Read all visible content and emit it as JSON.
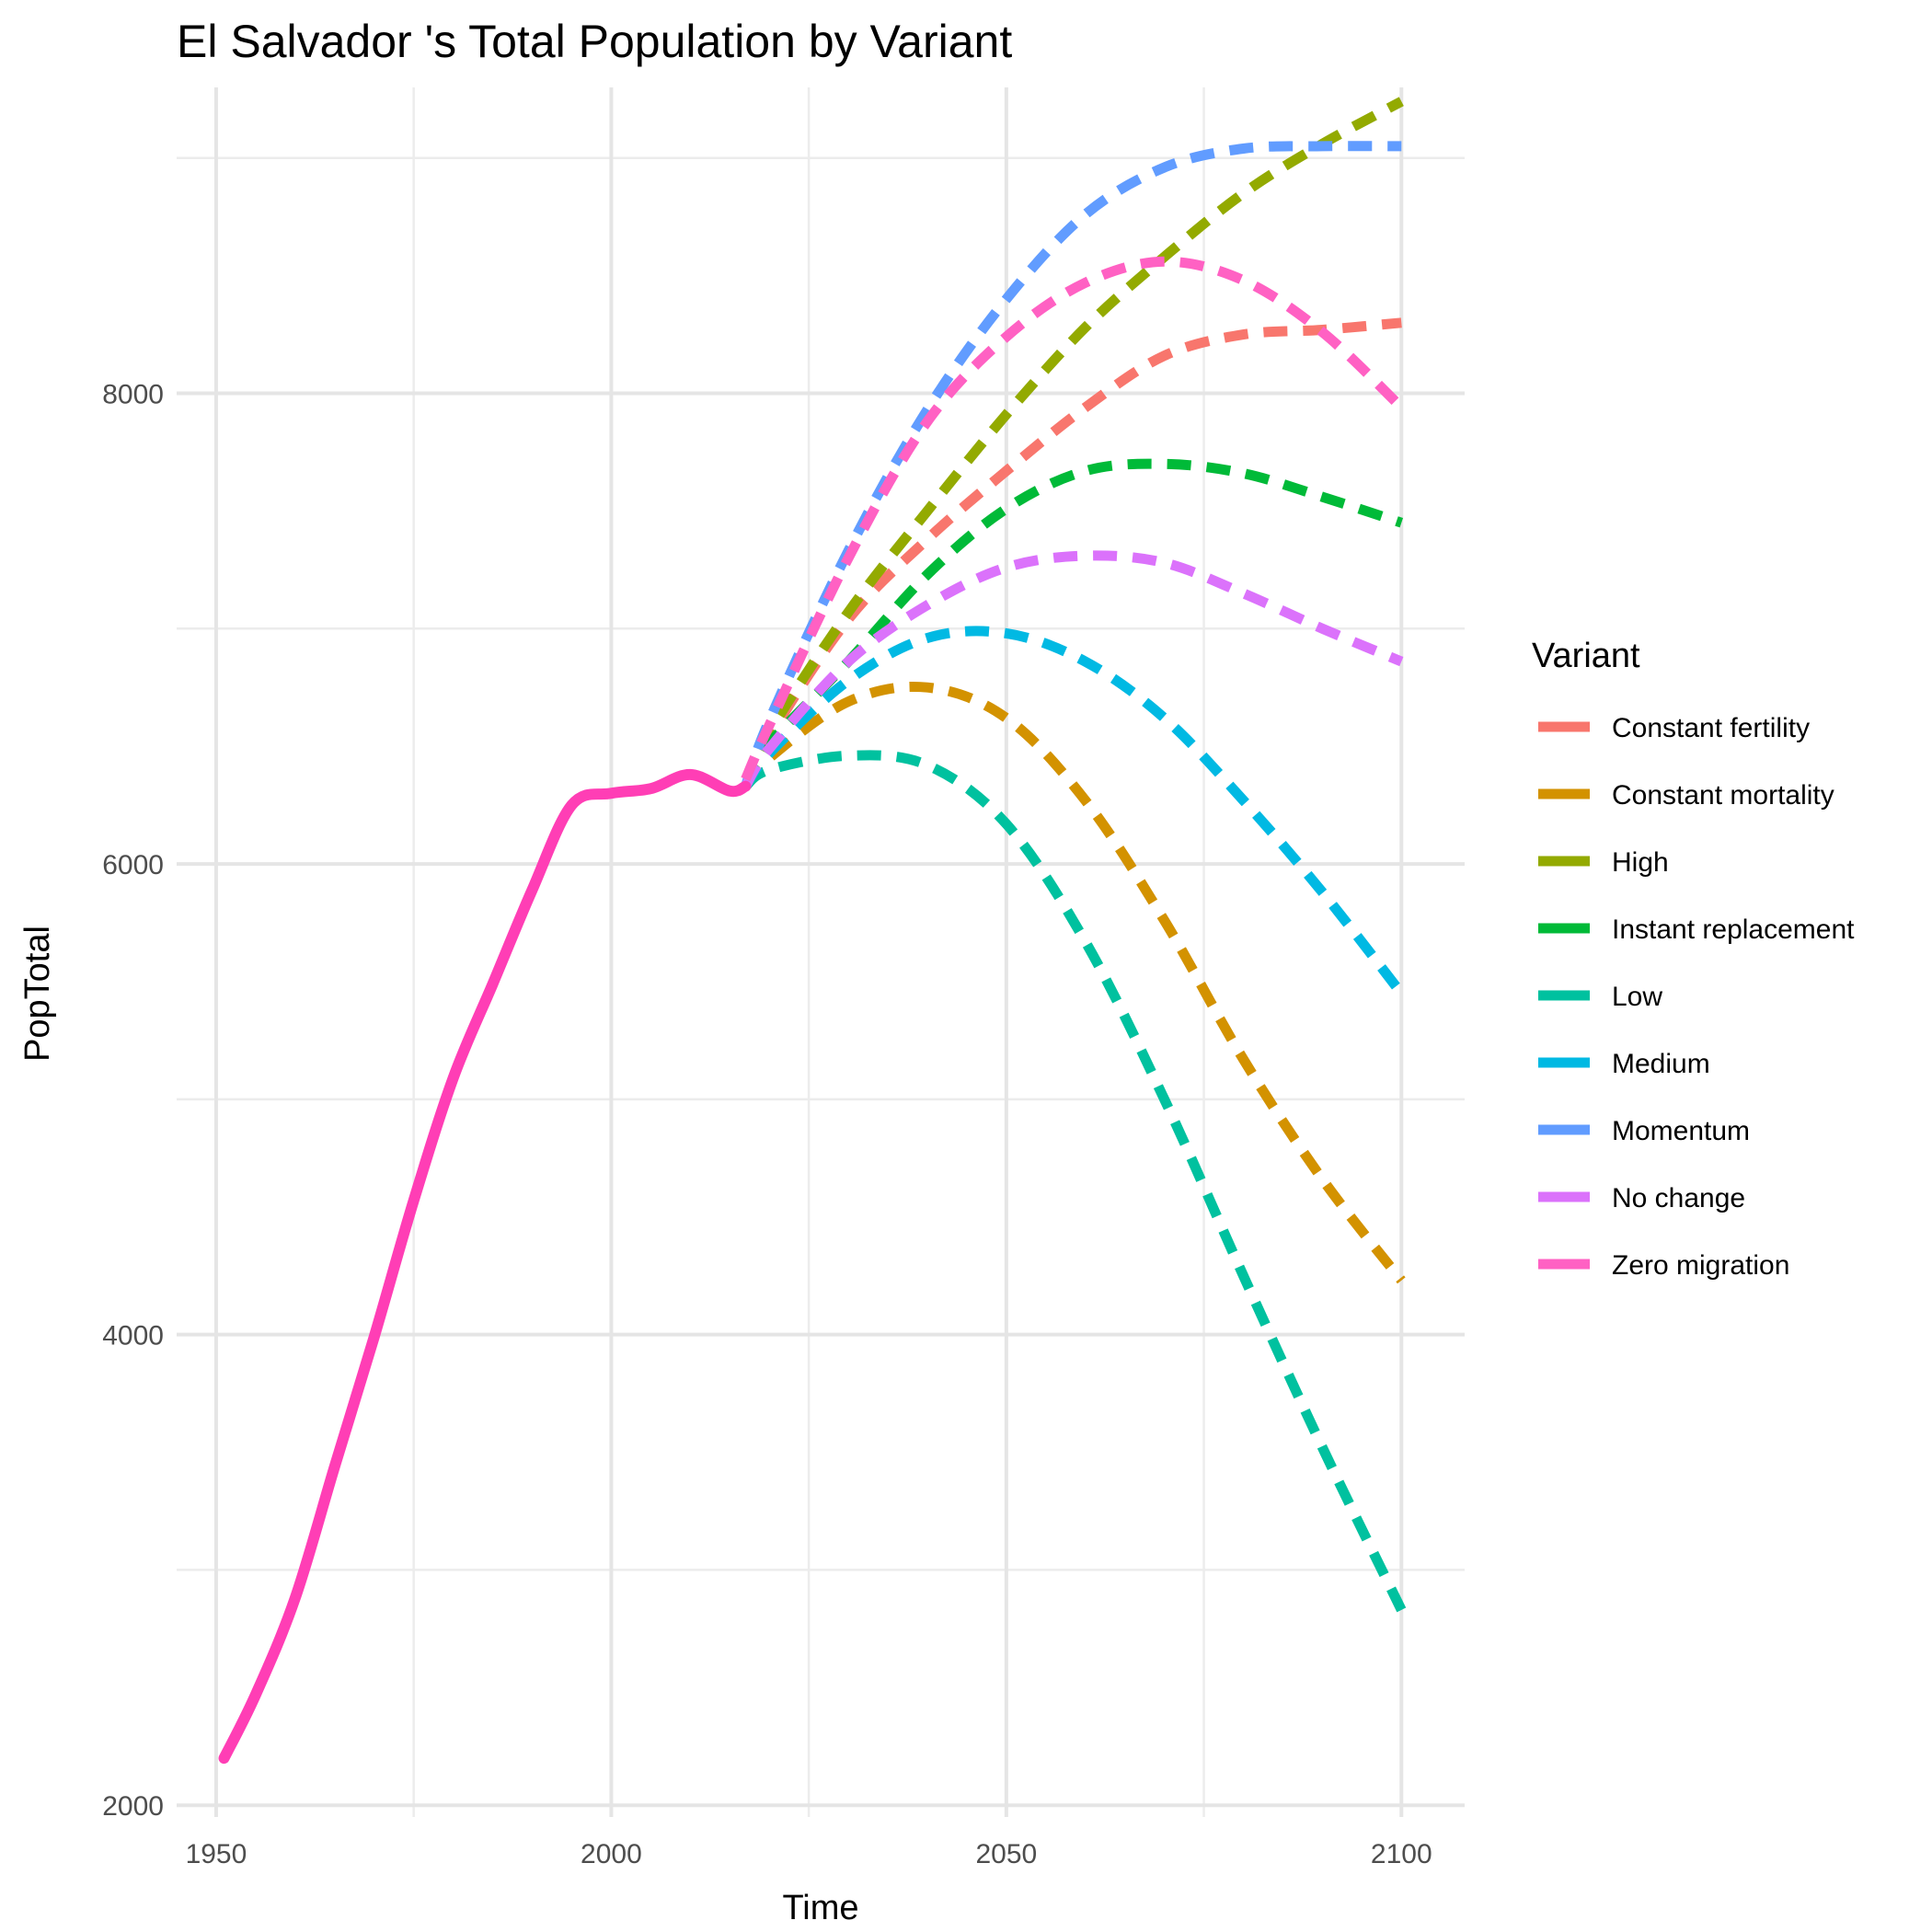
{
  "chart_data": {
    "type": "line",
    "title": "El Salvador 's Total Population by Variant",
    "xlabel": "Time",
    "ylabel": "PopTotal",
    "xlim": [
      1945,
      2108
    ],
    "ylim": [
      1950,
      9300
    ],
    "x_ticks": [
      1950,
      2000,
      2050,
      2100
    ],
    "y_ticks": [
      2000,
      4000,
      6000,
      8000
    ],
    "grid": true,
    "legend": {
      "title": "Variant",
      "position": "right"
    },
    "historical": {
      "name": "Zero migration",
      "color": "#FF3EB5",
      "x": [
        1951,
        1955,
        1960,
        1965,
        1970,
        1975,
        1980,
        1985,
        1990,
        1995,
        2000,
        2005,
        2010,
        2015,
        2017
      ],
      "y": [
        2200,
        2470,
        2880,
        3440,
        3990,
        4570,
        5090,
        5490,
        5890,
        6250,
        6300,
        6320,
        6380,
        6310,
        6330
      ]
    },
    "series": [
      {
        "name": "Constant fertility",
        "color": "#F8766D",
        "x": [
          2017,
          2020,
          2030,
          2040,
          2050,
          2060,
          2070,
          2080,
          2090,
          2100
        ],
        "y": [
          6330,
          6540,
          7040,
          7380,
          7670,
          7940,
          8160,
          8250,
          8270,
          8300
        ]
      },
      {
        "name": "Constant mortality",
        "color": "#D39200",
        "x": [
          2017,
          2020,
          2030,
          2040,
          2050,
          2060,
          2070,
          2080,
          2090,
          2100
        ],
        "y": [
          6330,
          6450,
          6690,
          6750,
          6620,
          6270,
          5760,
          5170,
          4660,
          4230
        ]
      },
      {
        "name": "High",
        "color": "#93AA00",
        "x": [
          2017,
          2020,
          2030,
          2040,
          2050,
          2060,
          2070,
          2080,
          2090,
          2100
        ],
        "y": [
          6330,
          6560,
          7070,
          7500,
          7910,
          8280,
          8580,
          8850,
          9060,
          9240
        ]
      },
      {
        "name": "Instant replacement",
        "color": "#00BA38",
        "x": [
          2017,
          2020,
          2030,
          2040,
          2050,
          2060,
          2070,
          2080,
          2090,
          2100
        ],
        "y": [
          6330,
          6510,
          6860,
          7230,
          7510,
          7670,
          7700,
          7660,
          7560,
          7450
        ]
      },
      {
        "name": "Low",
        "color": "#00C19F",
        "x": [
          2017,
          2020,
          2030,
          2040,
          2050,
          2060,
          2070,
          2080,
          2090,
          2100
        ],
        "y": [
          6330,
          6400,
          6460,
          6420,
          6170,
          5670,
          5000,
          4250,
          3520,
          2830
        ]
      },
      {
        "name": "Medium",
        "color": "#00B9E3",
        "x": [
          2017,
          2020,
          2030,
          2040,
          2050,
          2060,
          2070,
          2080,
          2090,
          2100
        ],
        "y": [
          6330,
          6470,
          6780,
          6960,
          6980,
          6860,
          6620,
          6270,
          5880,
          5450
        ]
      },
      {
        "name": "Momentum",
        "color": "#619CFF",
        "x": [
          2017,
          2020,
          2030,
          2040,
          2050,
          2060,
          2070,
          2080,
          2090,
          2100
        ],
        "y": [
          6330,
          6610,
          7330,
          7930,
          8400,
          8760,
          8960,
          9040,
          9050,
          9050
        ]
      },
      {
        "name": "No change",
        "color": "#DB72FB",
        "x": [
          2017,
          2020,
          2030,
          2040,
          2050,
          2060,
          2070,
          2080,
          2090,
          2100
        ],
        "y": [
          6330,
          6490,
          6860,
          7100,
          7260,
          7310,
          7280,
          7150,
          7000,
          6860
        ]
      },
      {
        "name": "Zero migration",
        "color": "#FF61C3",
        "x": [
          2017,
          2020,
          2030,
          2040,
          2050,
          2060,
          2070,
          2080,
          2090,
          2100
        ],
        "y": [
          6360,
          6590,
          7300,
          7880,
          8240,
          8470,
          8560,
          8480,
          8260,
          7940
        ]
      }
    ]
  }
}
